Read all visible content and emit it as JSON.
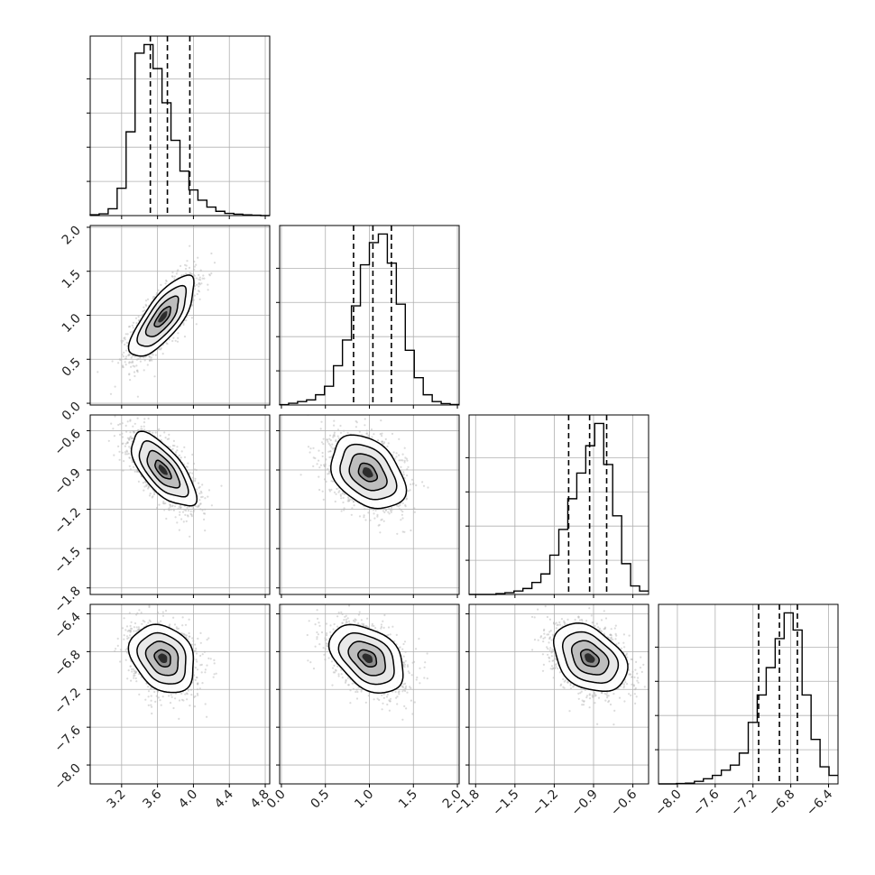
{
  "chart_data": {
    "type": "corner",
    "grid": true,
    "variables": [
      {
        "range": [
          2.85,
          4.85
        ],
        "ticks": [
          3.2,
          3.6,
          4.0,
          4.4,
          4.8
        ],
        "tick_labels": [
          "3.2",
          "3.6",
          "4.0",
          "4.4",
          "4.8"
        ],
        "quantiles": [
          3.52,
          3.71,
          3.96
        ],
        "hist": [
          0.005,
          0.01,
          0.04,
          0.16,
          0.49,
          0.95,
          1.0,
          0.86,
          0.66,
          0.44,
          0.26,
          0.15,
          0.09,
          0.05,
          0.025,
          0.013,
          0.008,
          0.004,
          0.002,
          0.0
        ]
      },
      {
        "range": [
          -0.02,
          2.02
        ],
        "ticks": [
          0.0,
          0.5,
          1.0,
          1.5,
          2.0
        ],
        "tick_labels": [
          "0.0",
          "0.5",
          "1.0",
          "1.5",
          "2.0"
        ],
        "quantiles": [
          0.82,
          1.04,
          1.25
        ],
        "hist": [
          0.002,
          0.01,
          0.02,
          0.03,
          0.06,
          0.11,
          0.23,
          0.38,
          0.58,
          0.82,
          0.95,
          1.0,
          0.83,
          0.59,
          0.32,
          0.16,
          0.06,
          0.02,
          0.008,
          0.003
        ]
      },
      {
        "range": [
          -1.85,
          -0.48
        ],
        "ticks": [
          -1.8,
          -1.5,
          -1.2,
          -0.9,
          -0.6
        ],
        "tick_labels": [
          "−1.8",
          "−1.5",
          "−1.2",
          "−0.9",
          "−0.6"
        ],
        "quantiles": [
          -1.09,
          -0.93,
          -0.8
        ],
        "hist": [
          0.0,
          0.0,
          0.0,
          0.005,
          0.01,
          0.02,
          0.035,
          0.07,
          0.12,
          0.23,
          0.38,
          0.56,
          0.71,
          0.87,
          1.0,
          0.76,
          0.46,
          0.18,
          0.05,
          0.02
        ]
      },
      {
        "range": [
          -8.2,
          -6.3
        ],
        "ticks": [
          -8.0,
          -7.6,
          -7.2,
          -6.8,
          -6.4
        ],
        "tick_labels": [
          "−8.0",
          "−7.6",
          "−7.2",
          "−6.8",
          "−6.4"
        ],
        "quantiles": [
          -7.14,
          -6.92,
          -6.73
        ],
        "hist": [
          0.0,
          0.0,
          0.002,
          0.004,
          0.015,
          0.03,
          0.05,
          0.08,
          0.11,
          0.18,
          0.36,
          0.52,
          0.68,
          0.85,
          1.0,
          0.9,
          0.52,
          0.26,
          0.1,
          0.05
        ]
      }
    ],
    "pairs": [
      {
        "row": 1,
        "col": 0,
        "center": [
          3.66,
          0.98
        ],
        "sd": [
          0.18,
          0.23
        ],
        "corr": 0.75
      },
      {
        "row": 2,
        "col": 0,
        "center": [
          3.66,
          -0.9
        ],
        "sd": [
          0.18,
          0.14
        ],
        "corr": -0.68
      },
      {
        "row": 2,
        "col": 1,
        "center": [
          0.98,
          -0.92
        ],
        "sd": [
          0.21,
          0.14
        ],
        "corr": -0.35
      },
      {
        "row": 3,
        "col": 0,
        "center": [
          3.66,
          -6.87
        ],
        "sd": [
          0.18,
          0.18
        ],
        "corr": -0.25
      },
      {
        "row": 3,
        "col": 1,
        "center": [
          0.98,
          -6.87
        ],
        "sd": [
          0.21,
          0.18
        ],
        "corr": -0.4
      },
      {
        "row": 3,
        "col": 2,
        "center": [
          -0.93,
          -6.87
        ],
        "sd": [
          0.14,
          0.18
        ],
        "corr": -0.35
      }
    ],
    "contour_levels_sigma": [
      0.5,
      1.0,
      1.5,
      2.0
    ]
  }
}
